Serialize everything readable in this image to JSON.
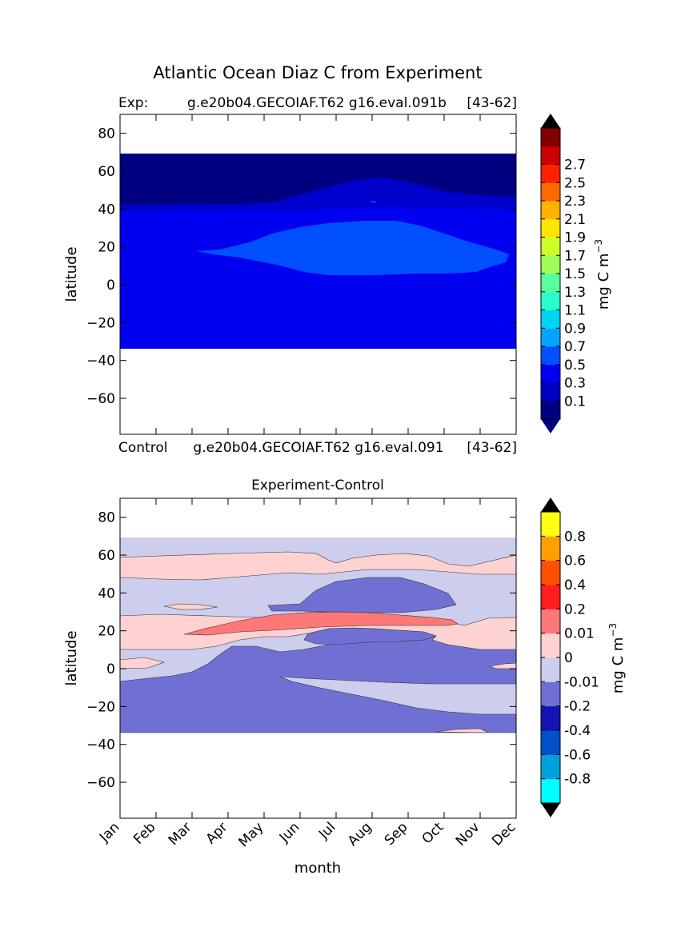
{
  "suptitle": "Atlantic Ocean Diaz C from Experiment",
  "top_panel": {
    "left_title": "Exp:",
    "center_title": "g.e20b04.GECOIAF.T62 g16.eval.091b",
    "right_title": "[43-62]"
  },
  "bottom_panel": {
    "header_left": "Control",
    "header_center": "g.e20b04.GECOIAF.T62 g16.eval.091",
    "header_right": "[43-62]",
    "title": "Experiment-Control"
  },
  "chart_data": [
    {
      "type": "heatmap",
      "title": "Exp: g.e20b04.GECOIAF.T62 g16.eval.091b [43-62]",
      "xlabel": "",
      "ylabel": "latitude",
      "xlim": [
        0,
        11
      ],
      "ylim": [
        -79,
        90
      ],
      "yticks": [
        80,
        60,
        40,
        20,
        0,
        -20,
        -40,
        -60
      ],
      "ytick_labels": [
        "80",
        "60",
        "40",
        "20",
        "0",
        "−20",
        "−40",
        "−60"
      ],
      "data_lat_range": [
        -34,
        69
      ],
      "regions": [
        {
          "name": "north-band",
          "value_range": "0.1-0.3",
          "color": "#000080"
        },
        {
          "name": "mid-north-band",
          "value_range": "0.3-0.5",
          "color": "#0000cd"
        },
        {
          "name": "main-body",
          "value_range": "0.5-0.7",
          "color": "#0000f1"
        },
        {
          "name": "tropical-max",
          "value_range": "0.7-0.9",
          "color": "#0050ff"
        }
      ],
      "colorbar": {
        "label": "mg C m",
        "label_exponent": "−3",
        "ticks": [
          "0.1",
          "0.3",
          "0.5",
          "0.7",
          "0.9",
          "1.1",
          "1.3",
          "1.5",
          "1.7",
          "1.9",
          "2.1",
          "2.3",
          "2.5",
          "2.7"
        ],
        "colors": [
          "#000080",
          "#0000c0",
          "#0000f0",
          "#0050ff",
          "#00a4ff",
          "#00d4f0",
          "#29ffce",
          "#5aff9d",
          "#9dff5a",
          "#ceff29",
          "#ffe600",
          "#ffb200",
          "#ff6800",
          "#ff2200",
          "#cd0000",
          "#800000"
        ],
        "under_color": "#000080",
        "over_color": "#000000"
      }
    },
    {
      "type": "heatmap",
      "title": "Experiment-Control",
      "xlabel": "month",
      "ylabel": "latitude",
      "xlim": [
        0,
        11
      ],
      "ylim": [
        -79,
        90
      ],
      "categories": [
        "Jan",
        "Feb",
        "Mar",
        "Apr",
        "May",
        "Jun",
        "Jul",
        "Aug",
        "Sep",
        "Oct",
        "Nov",
        "Dec"
      ],
      "yticks": [
        80,
        60,
        40,
        20,
        0,
        -20,
        -40,
        -60
      ],
      "ytick_labels": [
        "80",
        "60",
        "40",
        "20",
        "0",
        "−20",
        "−40",
        "−60"
      ],
      "data_lat_range": [
        -34,
        69
      ],
      "regions": [
        {
          "name": "background",
          "value_range": "-0.01-0",
          "color": "#cdcdee"
        },
        {
          "name": "negative-patches",
          "value_range": "-0.2--0.01",
          "color": "#7070d4"
        },
        {
          "name": "positive-bands",
          "value_range": "0-0.01",
          "color": "#ffd2d2"
        },
        {
          "name": "positive-core",
          "value_range": "0.01-0.2",
          "color": "#ff7878"
        }
      ],
      "colorbar": {
        "label": "mg C m",
        "label_exponent": "−3",
        "ticks": [
          "-0.8",
          "-0.6",
          "-0.4",
          "-0.2",
          "-0.01",
          "0",
          "0.01",
          "0.2",
          "0.4",
          "0.6",
          "0.8"
        ],
        "colors": [
          "#00ffff",
          "#00a0dc",
          "#0050c8",
          "#1414b4",
          "#7070d4",
          "#cdcdee",
          "#ffd2d2",
          "#ff7878",
          "#ff1e1e",
          "#ff5000",
          "#ffa000",
          "#ffff14"
        ],
        "under_color": "#000000",
        "over_color": "#000000"
      }
    }
  ]
}
